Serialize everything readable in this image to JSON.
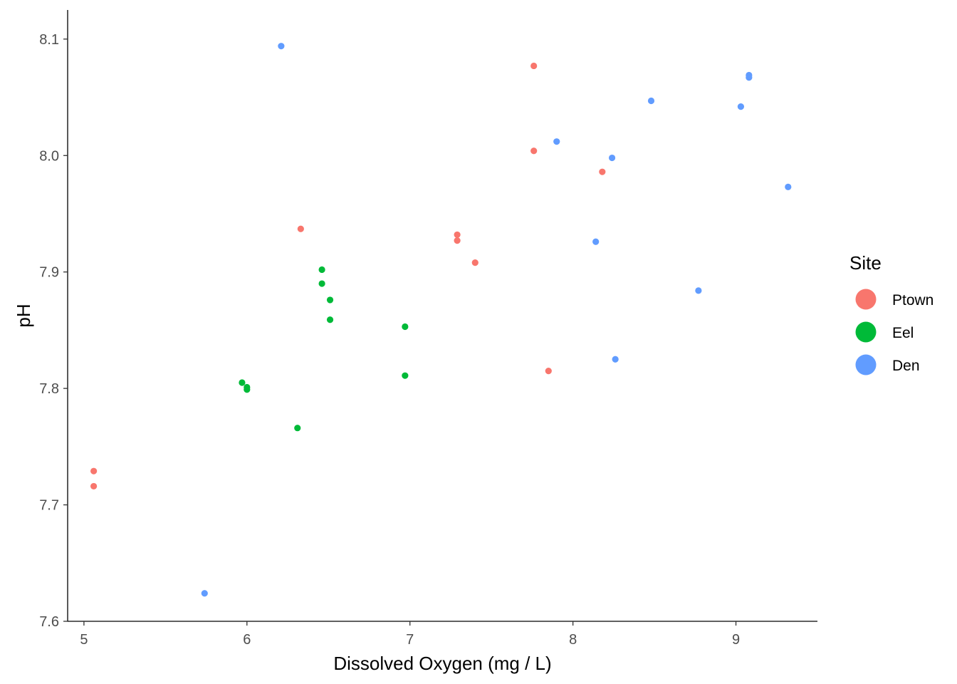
{
  "chart_data": {
    "type": "scatter",
    "title": "",
    "xlabel": "Dissolved Oxygen (mg / L)",
    "ylabel": "pH",
    "xlim": [
      4.9,
      9.5
    ],
    "ylim": [
      7.6,
      8.125
    ],
    "x_ticks": [
      5,
      6,
      7,
      8,
      9
    ],
    "y_ticks": [
      7.6,
      7.7,
      7.8,
      7.9,
      8.0,
      8.1
    ],
    "x_tick_labels": [
      "5",
      "6",
      "7",
      "8",
      "9"
    ],
    "y_tick_labels": [
      "7.6",
      "7.7",
      "7.8",
      "7.9",
      "8.0",
      "8.1"
    ],
    "grid": false,
    "legend": {
      "title": "Site",
      "placement": "right"
    },
    "series": [
      {
        "name": "Ptown",
        "color": "#F8766D",
        "points": [
          {
            "x": 5.06,
            "y": 7.729
          },
          {
            "x": 5.06,
            "y": 7.716
          },
          {
            "x": 6.33,
            "y": 7.937
          },
          {
            "x": 7.29,
            "y": 7.932
          },
          {
            "x": 7.29,
            "y": 7.927
          },
          {
            "x": 7.4,
            "y": 7.908
          },
          {
            "x": 7.76,
            "y": 8.077
          },
          {
            "x": 7.76,
            "y": 8.004
          },
          {
            "x": 7.85,
            "y": 7.815
          },
          {
            "x": 8.18,
            "y": 7.986
          }
        ]
      },
      {
        "name": "Eel",
        "color": "#00BA38",
        "points": [
          {
            "x": 5.97,
            "y": 7.805
          },
          {
            "x": 6.0,
            "y": 7.801
          },
          {
            "x": 6.0,
            "y": 7.799
          },
          {
            "x": 6.31,
            "y": 7.766
          },
          {
            "x": 6.46,
            "y": 7.902
          },
          {
            "x": 6.46,
            "y": 7.89
          },
          {
            "x": 6.51,
            "y": 7.876
          },
          {
            "x": 6.51,
            "y": 7.859
          },
          {
            "x": 6.97,
            "y": 7.853
          },
          {
            "x": 6.97,
            "y": 7.811
          }
        ]
      },
      {
        "name": "Den",
        "color": "#619CFF",
        "points": [
          {
            "x": 5.74,
            "y": 7.624
          },
          {
            "x": 6.21,
            "y": 8.094
          },
          {
            "x": 7.9,
            "y": 8.012
          },
          {
            "x": 8.14,
            "y": 7.926
          },
          {
            "x": 8.24,
            "y": 7.998
          },
          {
            "x": 8.26,
            "y": 7.825
          },
          {
            "x": 8.48,
            "y": 8.047
          },
          {
            "x": 8.77,
            "y": 7.884
          },
          {
            "x": 9.03,
            "y": 8.042
          },
          {
            "x": 9.08,
            "y": 8.069
          },
          {
            "x": 9.08,
            "y": 8.067
          },
          {
            "x": 9.32,
            "y": 7.973
          }
        ]
      }
    ]
  }
}
